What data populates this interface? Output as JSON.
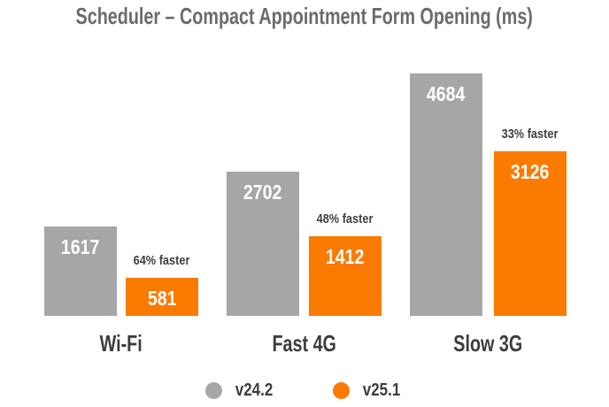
{
  "chart_data": {
    "type": "bar",
    "title": "Scheduler – Compact Appointment Form Opening (ms)",
    "categories": [
      "Wi-Fi",
      "Fast 4G",
      "Slow 3G"
    ],
    "series": [
      {
        "name": "v24.2",
        "color": "#A6A6A6",
        "values": [
          1617,
          2702,
          4684
        ]
      },
      {
        "name": "v25.1",
        "color": "#FB7A00",
        "values": [
          581,
          1412,
          3126
        ]
      }
    ],
    "annotations": [
      "64% faster",
      "48% faster",
      "33% faster"
    ],
    "xlabel": "",
    "ylabel": "",
    "grid": false,
    "axes_hidden": true,
    "legend_position": "bottom",
    "value_labels": "inside-top, white",
    "colors": {
      "background": "#FFFFFF",
      "title_text": "#6B6B6B",
      "category_text": "#3D3D3D",
      "annotation_text": "#404040",
      "value_text": "#FFFFFF"
    }
  }
}
